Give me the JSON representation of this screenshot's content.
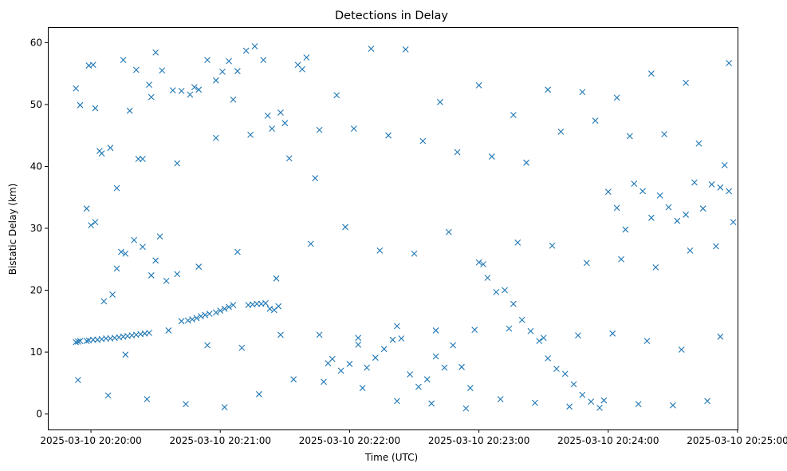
{
  "chart_data": {
    "type": "scatter",
    "title": "Detections in Delay",
    "xlabel": "Time (UTC)",
    "ylabel": "Bistatic Delay (km)",
    "x_ticks": [
      "2025-03-10 20:20:00",
      "2025-03-10 20:21:00",
      "2025-03-10 20:22:00",
      "2025-03-10 20:23:00",
      "2025-03-10 20:24:00",
      "2025-03-10 20:25:00"
    ],
    "y_ticks": [
      "0",
      "10",
      "20",
      "30",
      "40",
      "50",
      "60"
    ],
    "xlim": [
      "2025-03-10 20:19:40",
      "2025-03-10 20:25:00"
    ],
    "ylim": [
      -2.5,
      62.5
    ],
    "marker": "x",
    "color": "#1f77b4",
    "grid": false,
    "series": [
      {
        "x": [
          "2025-03-10 20:19:53",
          "2025-03-10 20:19:54",
          "2025-03-10 20:19:55",
          "2025-03-10 20:19:58",
          "2025-03-10 20:19:59",
          "2025-03-10 20:20:01",
          "2025-03-10 20:20:03",
          "2025-03-10 20:20:05",
          "2025-03-10 20:20:07",
          "2025-03-10 20:20:09",
          "2025-03-10 20:20:11",
          "2025-03-10 20:20:13",
          "2025-03-10 20:20:15",
          "2025-03-10 20:20:17",
          "2025-03-10 20:20:19",
          "2025-03-10 20:20:21",
          "2025-03-10 20:20:23",
          "2025-03-10 20:20:25",
          "2025-03-10 20:20:27",
          "2025-03-10 20:19:53",
          "2025-03-10 20:19:55",
          "2025-03-10 20:19:59",
          "2025-03-10 20:20:01",
          "2025-03-10 20:20:05",
          "2025-03-10 20:20:09",
          "2025-03-10 20:20:12",
          "2025-03-10 20:20:15",
          "2025-03-10 20:20:18",
          "2025-03-10 20:20:21",
          "2025-03-10 20:20:24",
          "2025-03-10 20:20:27",
          "2025-03-10 20:20:30",
          "2025-03-10 20:20:33",
          "2025-03-10 20:19:58",
          "2025-03-10 20:20:00",
          "2025-03-10 20:20:02",
          "2025-03-10 20:20:06",
          "2025-03-10 20:20:10",
          "2025-03-10 20:20:14",
          "2025-03-10 20:20:16",
          "2025-03-10 20:20:20",
          "2025-03-10 20:20:24",
          "2025-03-10 20:20:28",
          "2025-03-10 20:20:30",
          "2025-03-10 20:20:35",
          "2025-03-10 20:20:40",
          "2025-03-10 20:20:42",
          "2025-03-10 20:20:45",
          "2025-03-10 20:20:47",
          "2025-03-10 20:20:49",
          "2025-03-10 20:20:51",
          "2025-03-10 20:20:53",
          "2025-03-10 20:20:55",
          "2025-03-10 20:20:58",
          "2025-03-10 20:21:00",
          "2025-03-10 20:21:02",
          "2025-03-10 20:21:04",
          "2025-03-10 20:21:06",
          "2025-03-10 20:20:38",
          "2025-03-10 20:20:42",
          "2025-03-10 20:20:46",
          "2025-03-10 20:20:50",
          "2025-03-10 20:20:54",
          "2025-03-10 20:20:58",
          "2025-03-10 20:21:01",
          "2025-03-10 20:21:04",
          "2025-03-10 20:21:08",
          "2025-03-10 20:21:12",
          "2025-03-10 20:21:16",
          "2025-03-10 20:21:20",
          "2025-03-10 20:21:24",
          "2025-03-10 20:21:28",
          "2025-03-10 20:21:32",
          "2025-03-10 20:21:36",
          "2025-03-10 20:21:40",
          "2025-03-10 20:21:13",
          "2025-03-10 20:21:15",
          "2025-03-10 20:21:17",
          "2025-03-10 20:21:19",
          "2025-03-10 20:21:21",
          "2025-03-10 20:21:23",
          "2025-03-10 20:21:25",
          "2025-03-10 20:21:27",
          "2025-03-10 20:21:44",
          "2025-03-10 20:21:48",
          "2025-03-10 20:21:52",
          "2025-03-10 20:21:56",
          "2025-03-10 20:22:00",
          "2025-03-10 20:22:04",
          "2025-03-10 20:22:08",
          "2025-03-10 20:22:12",
          "2025-03-10 20:22:16",
          "2025-03-10 20:22:20",
          "2025-03-10 20:22:24",
          "2025-03-10 20:22:28",
          "2025-03-10 20:22:32",
          "2025-03-10 20:22:36",
          "2025-03-10 20:22:40",
          "2025-03-10 20:22:44",
          "2025-03-10 20:22:48",
          "2025-03-10 20:22:52",
          "2025-03-10 20:22:56",
          "2025-03-10 20:23:00",
          "2025-03-10 20:23:04",
          "2025-03-10 20:23:08",
          "2025-03-10 20:23:12",
          "2025-03-10 20:23:16",
          "2025-03-10 20:23:20",
          "2025-03-10 20:23:24",
          "2025-03-10 20:23:28",
          "2025-03-10 20:23:32",
          "2025-03-10 20:23:36",
          "2025-03-10 20:23:40",
          "2025-03-10 20:23:44",
          "2025-03-10 20:23:48",
          "2025-03-10 20:23:52",
          "2025-03-10 20:23:56",
          "2025-03-10 20:24:00",
          "2025-03-10 20:24:04",
          "2025-03-10 20:24:08",
          "2025-03-10 20:24:12",
          "2025-03-10 20:24:16",
          "2025-03-10 20:24:20",
          "2025-03-10 20:24:24",
          "2025-03-10 20:24:28",
          "2025-03-10 20:24:32",
          "2025-03-10 20:24:36",
          "2025-03-10 20:24:40",
          "2025-03-10 20:24:44",
          "2025-03-10 20:24:48",
          "2025-03-10 20:24:52",
          "2025-03-10 20:24:56",
          "2025-03-10 20:24:58",
          "2025-03-10 20:19:54",
          "2025-03-10 20:20:08",
          "2025-03-10 20:20:26",
          "2025-03-10 20:20:44",
          "2025-03-10 20:21:02",
          "2025-03-10 20:21:18",
          "2025-03-10 20:21:34",
          "2025-03-10 20:21:50",
          "2025-03-10 20:22:06",
          "2025-03-10 20:22:22",
          "2025-03-10 20:22:38",
          "2025-03-10 20:22:54",
          "2025-03-10 20:23:10",
          "2025-03-10 20:23:26",
          "2025-03-10 20:23:42",
          "2025-03-10 20:23:58",
          "2025-03-10 20:24:14",
          "2025-03-10 20:24:30",
          "2025-03-10 20:24:46",
          "2025-03-10 20:20:04",
          "2025-03-10 20:20:22",
          "2025-03-10 20:20:40",
          "2025-03-10 20:20:58",
          "2025-03-10 20:21:14",
          "2025-03-10 20:21:30",
          "2025-03-10 20:21:46",
          "2025-03-10 20:22:02",
          "2025-03-10 20:22:18",
          "2025-03-10 20:22:34",
          "2025-03-10 20:22:50",
          "2025-03-10 20:23:06",
          "2025-03-10 20:23:22",
          "2025-03-10 20:23:38",
          "2025-03-10 20:23:54",
          "2025-03-10 20:24:10",
          "2025-03-10 20:24:26",
          "2025-03-10 20:24:42",
          "2025-03-10 20:24:54",
          "2025-03-10 20:20:12",
          "2025-03-10 20:20:32",
          "2025-03-10 20:20:50",
          "2025-03-10 20:21:08",
          "2025-03-10 20:21:26",
          "2025-03-10 20:21:42",
          "2025-03-10 20:21:58",
          "2025-03-10 20:22:14",
          "2025-03-10 20:22:30",
          "2025-03-10 20:22:46",
          "2025-03-10 20:23:02",
          "2025-03-10 20:23:18",
          "2025-03-10 20:23:34",
          "2025-03-10 20:23:50",
          "2025-03-10 20:24:06",
          "2025-03-10 20:24:22",
          "2025-03-10 20:24:38",
          "2025-03-10 20:24:50",
          "2025-03-10 20:20:16",
          "2025-03-10 20:20:36",
          "2025-03-10 20:20:54",
          "2025-03-10 20:21:10",
          "2025-03-10 20:21:28",
          "2025-03-10 20:21:46",
          "2025-03-10 20:22:04",
          "2025-03-10 20:22:22",
          "2025-03-10 20:22:40",
          "2025-03-10 20:22:58",
          "2025-03-10 20:23:14",
          "2025-03-10 20:23:30",
          "2025-03-10 20:23:46",
          "2025-03-10 20:24:02",
          "2025-03-10 20:24:18",
          "2025-03-10 20:24:34",
          "2025-03-10 20:24:52",
          "2025-03-10 20:20:02",
          "2025-03-10 20:20:28",
          "2025-03-10 20:20:48",
          "2025-03-10 20:21:06",
          "2025-03-10 20:21:22",
          "2025-03-10 20:21:38",
          "2025-03-10 20:21:54",
          "2025-03-10 20:22:10",
          "2025-03-10 20:22:26",
          "2025-03-10 20:22:42",
          "2025-03-10 20:23:00",
          "2025-03-10 20:23:16",
          "2025-03-10 20:23:32",
          "2025-03-10 20:23:48",
          "2025-03-10 20:24:04",
          "2025-03-10 20:24:20",
          "2025-03-10 20:24:36",
          "2025-03-10 20:24:56"
        ],
        "y": [
          11.6,
          11.7,
          11.8,
          11.8,
          11.9,
          12.0,
          12.0,
          12.1,
          12.2,
          12.2,
          12.3,
          12.4,
          12.5,
          12.6,
          12.7,
          12.8,
          12.9,
          13.0,
          13.1,
          52.6,
          49.9,
          56.3,
          56.4,
          42.1,
          43.0,
          36.5,
          57.2,
          49.0,
          55.6,
          41.2,
          53.2,
          58.4,
          55.5,
          33.2,
          30.5,
          31.0,
          18.2,
          19.3,
          26.2,
          25.9,
          28.1,
          27.0,
          22.4,
          24.8,
          21.5,
          22.6,
          15.0,
          15.1,
          15.3,
          15.5,
          15.8,
          16.0,
          16.2,
          16.4,
          16.7,
          17.0,
          17.3,
          17.6,
          52.3,
          52.2,
          51.6,
          52.4,
          57.2,
          53.9,
          55.3,
          57.0,
          55.4,
          58.7,
          59.4,
          57.2,
          46.1,
          48.7,
          41.3,
          56.4,
          57.6,
          17.6,
          17.7,
          17.8,
          17.8,
          17.9,
          17.0,
          16.8,
          17.4,
          38.1,
          5.2,
          8.9,
          7.0,
          8.1,
          11.2,
          7.5,
          9.1,
          10.5,
          12.0,
          12.2,
          6.4,
          4.4,
          5.6,
          9.3,
          7.5,
          11.1,
          7.6,
          4.2,
          24.5,
          22.0,
          19.7,
          20.0,
          17.8,
          15.2,
          13.4,
          11.8,
          9.0,
          7.3,
          6.5,
          4.8,
          3.1,
          2.0,
          1.0,
          35.9,
          33.3,
          29.8,
          37.2,
          36.0,
          31.7,
          35.3,
          33.4,
          31.2,
          32.2,
          37.4,
          33.2,
          37.1,
          36.6,
          36.0,
          31.0,
          5.5,
          3.0,
          2.4,
          1.6,
          1.1,
          3.2,
          5.6,
          8.2,
          4.2,
          2.1,
          1.7,
          0.9,
          2.4,
          1.8,
          1.2,
          2.2,
          1.6,
          1.4,
          2.1,
          42.5,
          41.2,
          40.5,
          44.6,
          45.1,
          47.0,
          45.9,
          46.1,
          45.0,
          44.1,
          42.3,
          41.6,
          40.6,
          45.6,
          47.4,
          44.9,
          45.2,
          43.7,
          40.2,
          23.5,
          28.7,
          23.8,
          26.2,
          21.9,
          27.5,
          30.2,
          26.4,
          25.9,
          29.4,
          24.2,
          27.7,
          27.2,
          24.4,
          25.0,
          23.7,
          26.4,
          27.1,
          9.6,
          13.5,
          11.1,
          10.7,
          12.8,
          12.8,
          12.3,
          14.2,
          13.5,
          13.6,
          13.8,
          12.3,
          12.7,
          13.0,
          11.8,
          10.4,
          12.5,
          49.4,
          51.2,
          52.8,
          50.8,
          48.2,
          55.7,
          51.5,
          59.0,
          58.9,
          50.4,
          53.1,
          48.3,
          52.4,
          52.0,
          51.1,
          55.0,
          53.5,
          56.7
        ]
      }
    ]
  }
}
